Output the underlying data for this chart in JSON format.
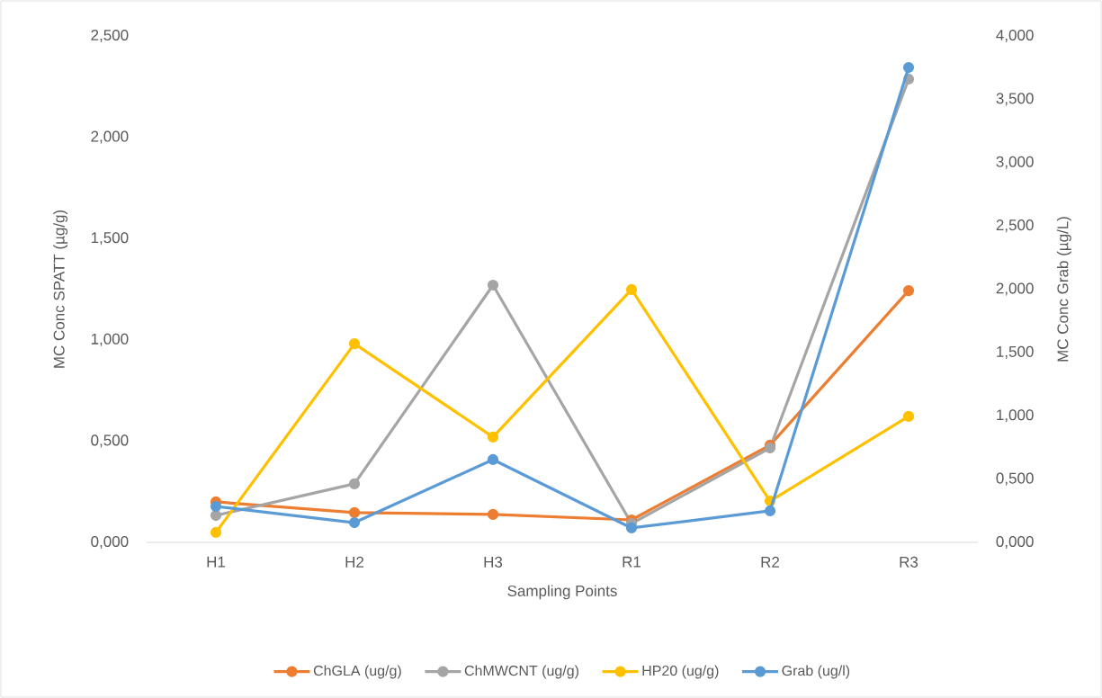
{
  "chart_data": {
    "type": "line",
    "xlabel": "Sampling Points",
    "ylabel": "MC Conc SPATT (µg/g)",
    "y2label": "MC Conc Grab (µg/L)",
    "categories": [
      "H1",
      "H2",
      "H3",
      "R1",
      "R2",
      "R3"
    ],
    "series": [
      {
        "name": "ChGLA (ug/g)",
        "color": "#ed7d31",
        "values": [
          0.2,
          0.147,
          0.138,
          0.111,
          0.48,
          1.243
        ]
      },
      {
        "name": "ChMWCNT (ug/g)",
        "color": "#a5a5a5",
        "values": [
          0.133,
          0.289,
          1.27,
          0.093,
          0.466,
          2.287
        ]
      },
      {
        "name": "HP20 (ug/g)",
        "color": "#ffc000",
        "values": [
          0.049,
          0.981,
          0.52,
          1.248,
          0.204,
          0.622
        ]
      },
      {
        "name": "Grab (ug/l)",
        "color": "#5b9bd5",
        "axis": "y2",
        "values": [
          0.284,
          0.156,
          0.654,
          0.114,
          0.249,
          3.751
        ]
      }
    ],
    "ylim": [
      0,
      2.5
    ],
    "yticks": [
      {
        "value": 0,
        "label": "0,000"
      },
      {
        "value": 0.5,
        "label": "0,500"
      },
      {
        "value": 1,
        "label": "1,000"
      },
      {
        "value": 1.5,
        "label": "1,500"
      },
      {
        "value": 2,
        "label": "2,000"
      },
      {
        "value": 2.5,
        "label": "2,500"
      }
    ],
    "y2lim": [
      0,
      4
    ],
    "y2ticks": [
      {
        "value": 0,
        "label": "0,000"
      },
      {
        "value": 0.5,
        "label": "0,500"
      },
      {
        "value": 1,
        "label": "1,000"
      },
      {
        "value": 1.5,
        "label": "1,500"
      },
      {
        "value": 2,
        "label": "2,000"
      },
      {
        "value": 2.5,
        "label": "2,500"
      },
      {
        "value": 3,
        "label": "3,000"
      },
      {
        "value": 3.5,
        "label": "3,500"
      },
      {
        "value": 4,
        "label": "4,000"
      }
    ],
    "legend": "bottom",
    "marker": "circle",
    "line_style": "solid"
  }
}
